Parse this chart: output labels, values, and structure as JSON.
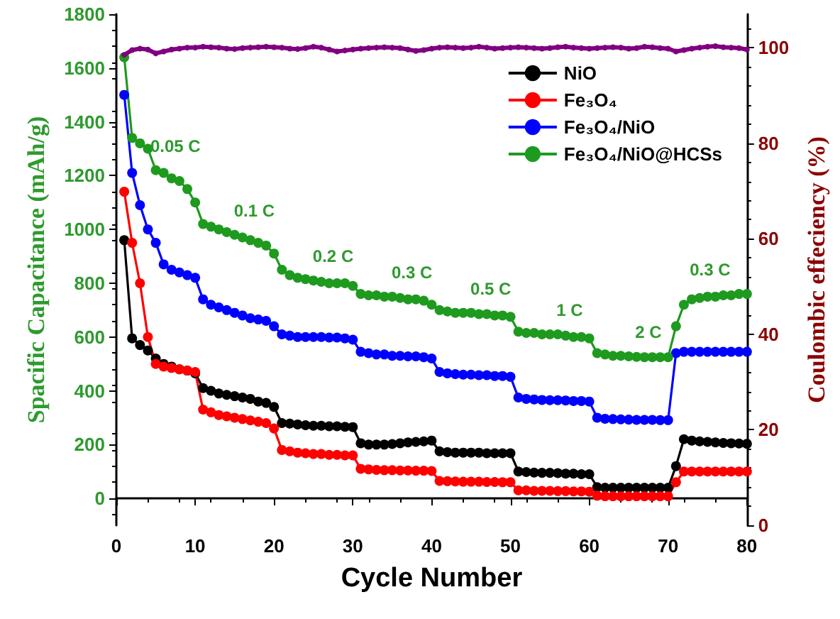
{
  "chart_data": {
    "type": "line",
    "xlabel": "Cycle Number",
    "ylabel": "Spacific Capacitance (mAh/g)",
    "y2label": "Coulombic effeciency (%)",
    "x": [
      1,
      2,
      3,
      4,
      5,
      6,
      7,
      8,
      9,
      10,
      11,
      12,
      13,
      14,
      15,
      16,
      17,
      18,
      19,
      20,
      21,
      22,
      23,
      24,
      25,
      26,
      27,
      28,
      29,
      30,
      31,
      32,
      33,
      34,
      35,
      36,
      37,
      38,
      39,
      40,
      41,
      42,
      43,
      44,
      45,
      46,
      47,
      48,
      49,
      50,
      51,
      52,
      53,
      54,
      55,
      56,
      57,
      58,
      59,
      60,
      61,
      62,
      63,
      64,
      65,
      66,
      67,
      68,
      69,
      70,
      71,
      72,
      73,
      74,
      75,
      76,
      77,
      78,
      79,
      80
    ],
    "xlim": [
      0,
      80
    ],
    "xticks": [
      0,
      10,
      20,
      30,
      40,
      50,
      60,
      70,
      80
    ],
    "ylim": [
      -100,
      1800
    ],
    "yticks": [
      0,
      200,
      400,
      600,
      800,
      1000,
      1200,
      1400,
      1600,
      1800
    ],
    "y2lim": [
      0,
      107
    ],
    "y2ticks": [
      0,
      20,
      40,
      60,
      80,
      100
    ],
    "grid": false,
    "legend": "top right",
    "marker": "circle",
    "line_style": "solid",
    "series": [
      {
        "name": "NiO",
        "color": "#000000",
        "values": [
          960,
          595,
          570,
          550,
          520,
          500,
          490,
          480,
          475,
          465,
          410,
          400,
          390,
          385,
          380,
          375,
          370,
          360,
          355,
          340,
          280,
          278,
          275,
          272,
          270,
          270,
          268,
          268,
          266,
          265,
          205,
          200,
          200,
          200,
          202,
          205,
          208,
          210,
          212,
          215,
          175,
          172,
          170,
          170,
          170,
          170,
          168,
          168,
          168,
          168,
          100,
          98,
          96,
          95,
          95,
          94,
          92,
          92,
          90,
          90,
          42,
          40,
          40,
          40,
          40,
          40,
          40,
          40,
          40,
          40,
          120,
          220,
          215,
          212,
          210,
          208,
          206,
          205,
          204,
          203
        ]
      },
      {
        "name": "Fe₃O₄",
        "color": "#ff0000",
        "values": [
          1140,
          950,
          800,
          600,
          500,
          490,
          485,
          480,
          475,
          470,
          330,
          320,
          310,
          305,
          300,
          295,
          290,
          285,
          280,
          260,
          180,
          175,
          170,
          168,
          165,
          165,
          162,
          162,
          160,
          160,
          110,
          108,
          106,
          105,
          105,
          104,
          104,
          103,
          103,
          102,
          65,
          64,
          63,
          62,
          62,
          62,
          61,
          61,
          60,
          60,
          30,
          30,
          28,
          28,
          28,
          27,
          27,
          26,
          26,
          25,
          10,
          8,
          8,
          8,
          8,
          8,
          8,
          8,
          8,
          8,
          60,
          100,
          100,
          100,
          100,
          100,
          100,
          100,
          100,
          100
        ]
      },
      {
        "name": "Fe₃O₄/NiO",
        "color": "#0000ff",
        "values": [
          1500,
          1210,
          1090,
          1000,
          950,
          870,
          850,
          840,
          830,
          820,
          740,
          720,
          710,
          700,
          690,
          680,
          670,
          665,
          660,
          640,
          610,
          605,
          600,
          600,
          600,
          600,
          598,
          598,
          595,
          590,
          545,
          540,
          535,
          535,
          530,
          530,
          528,
          528,
          525,
          520,
          470,
          465,
          462,
          460,
          460,
          458,
          458,
          455,
          455,
          452,
          375,
          370,
          368,
          366,
          365,
          365,
          364,
          362,
          362,
          360,
          300,
          296,
          295,
          294,
          293,
          292,
          292,
          292,
          291,
          291,
          540,
          545,
          545,
          545,
          545,
          545,
          545,
          545,
          545,
          545
        ]
      },
      {
        "name": "Fe₃O₄/NiO@HCSs",
        "color": "#1e9a1e",
        "values": [
          1640,
          1340,
          1320,
          1300,
          1220,
          1210,
          1190,
          1180,
          1150,
          1100,
          1020,
          1010,
          1000,
          990,
          980,
          970,
          960,
          950,
          940,
          910,
          850,
          830,
          820,
          815,
          810,
          805,
          800,
          800,
          800,
          790,
          760,
          755,
          755,
          750,
          750,
          745,
          740,
          740,
          735,
          720,
          700,
          695,
          690,
          690,
          690,
          685,
          685,
          680,
          680,
          675,
          620,
          615,
          615,
          610,
          610,
          610,
          605,
          600,
          600,
          595,
          540,
          535,
          530,
          530,
          528,
          526,
          525,
          525,
          525,
          525,
          640,
          720,
          740,
          745,
          750,
          750,
          755,
          755,
          760,
          760
        ]
      },
      {
        "color": "#800080",
        "axis": "y2",
        "values": [
          98.5,
          99.5,
          99.8,
          99.6,
          98.8,
          99.2,
          99.6,
          99.8,
          100,
          100,
          100.2,
          100.1,
          100,
          99.8,
          99.7,
          99.9,
          100,
          100.1,
          100.2,
          100.1,
          100,
          99.8,
          99.7,
          99.9,
          100.2,
          100,
          99.6,
          99.2,
          99.4,
          99.6,
          99.8,
          99.9,
          100,
          100.1,
          100,
          99.9,
          99.6,
          99.3,
          99.5,
          99.8,
          100,
          100.1,
          100,
          99.9,
          100,
          100.2,
          100,
          99.8,
          99.9,
          100,
          100.1,
          100,
          99.9,
          99.8,
          99.9,
          100.1,
          100.2,
          100,
          99.9,
          99.8,
          99.9,
          100,
          100.1,
          100,
          99.8,
          99.9,
          100.2,
          100.1,
          99.9,
          99.8,
          99.2,
          99.5,
          99.8,
          100,
          100.2,
          100.3,
          100.1,
          100,
          99.9,
          99.6
        ]
      }
    ],
    "annotations": [
      "0.05 C",
      "0.1 C",
      "0.2 C",
      "0.3 C",
      "0.5 C",
      "1 C",
      "2 C",
      "0.3 C"
    ]
  }
}
